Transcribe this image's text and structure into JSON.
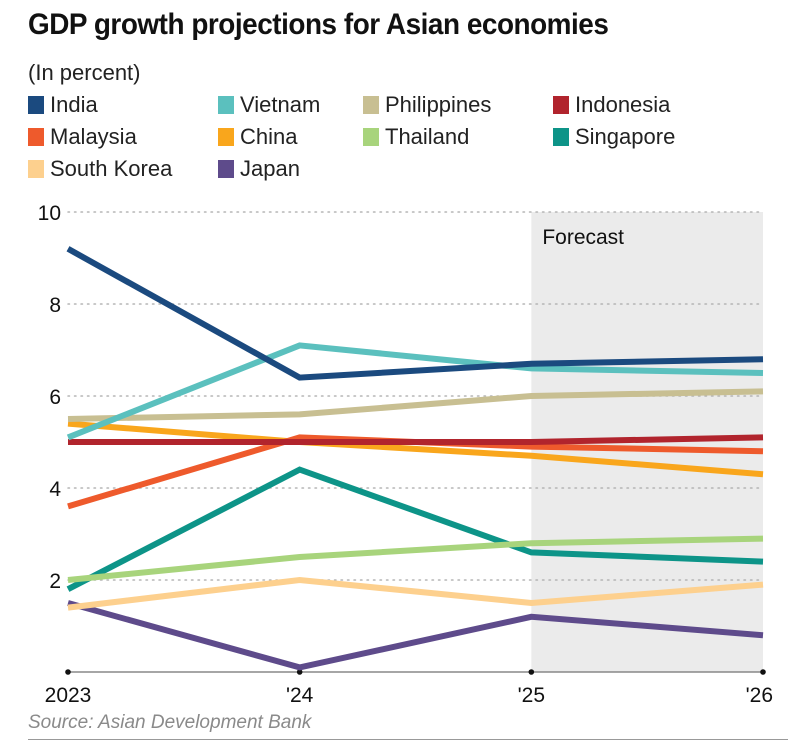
{
  "chart_data": {
    "type": "line",
    "title": "GDP growth projections for Asian economies",
    "subtitle": "(In percent)",
    "xlabel": "",
    "ylabel": "",
    "x": [
      "2023",
      "'24",
      "'25",
      "'26"
    ],
    "ylim": [
      0,
      10
    ],
    "yticks": [
      "2",
      "4",
      "6",
      "8",
      "10"
    ],
    "ytick_values": [
      2,
      4,
      6,
      8,
      10
    ],
    "grid": "horizontal dotted",
    "legend_position": "top",
    "annotations": [
      {
        "text": "Forecast",
        "region": [
          "'25",
          "'26"
        ],
        "shading": "#ebebeb"
      }
    ],
    "series": [
      {
        "name": "India",
        "color": "#1b4a7f",
        "values": [
          9.2,
          6.4,
          6.7,
          6.8
        ]
      },
      {
        "name": "Vietnam",
        "color": "#5bc0be",
        "values": [
          5.1,
          7.1,
          6.6,
          6.5
        ]
      },
      {
        "name": "Philippines",
        "color": "#c8bf92",
        "values": [
          5.5,
          5.6,
          6.0,
          6.1
        ]
      },
      {
        "name": "Indonesia",
        "color": "#b1242d",
        "values": [
          5.0,
          5.0,
          5.0,
          5.1
        ]
      },
      {
        "name": "Malaysia",
        "color": "#ee5a2c",
        "values": [
          3.6,
          5.1,
          4.9,
          4.8
        ]
      },
      {
        "name": "China",
        "color": "#f9a61c",
        "values": [
          5.4,
          5.0,
          4.7,
          4.3
        ]
      },
      {
        "name": "Thailand",
        "color": "#a8d47c",
        "values": [
          2.0,
          2.5,
          2.8,
          2.9
        ]
      },
      {
        "name": "Singapore",
        "color": "#0d9488",
        "values": [
          1.8,
          4.4,
          2.6,
          2.4
        ]
      },
      {
        "name": "South Korea",
        "color": "#fdd08e",
        "values": [
          1.4,
          2.0,
          1.5,
          1.9
        ]
      },
      {
        "name": "Japan",
        "color": "#5e4b8b",
        "values": [
          1.5,
          0.1,
          1.2,
          0.8
        ]
      }
    ],
    "source": "Source: Asian Development Bank"
  }
}
